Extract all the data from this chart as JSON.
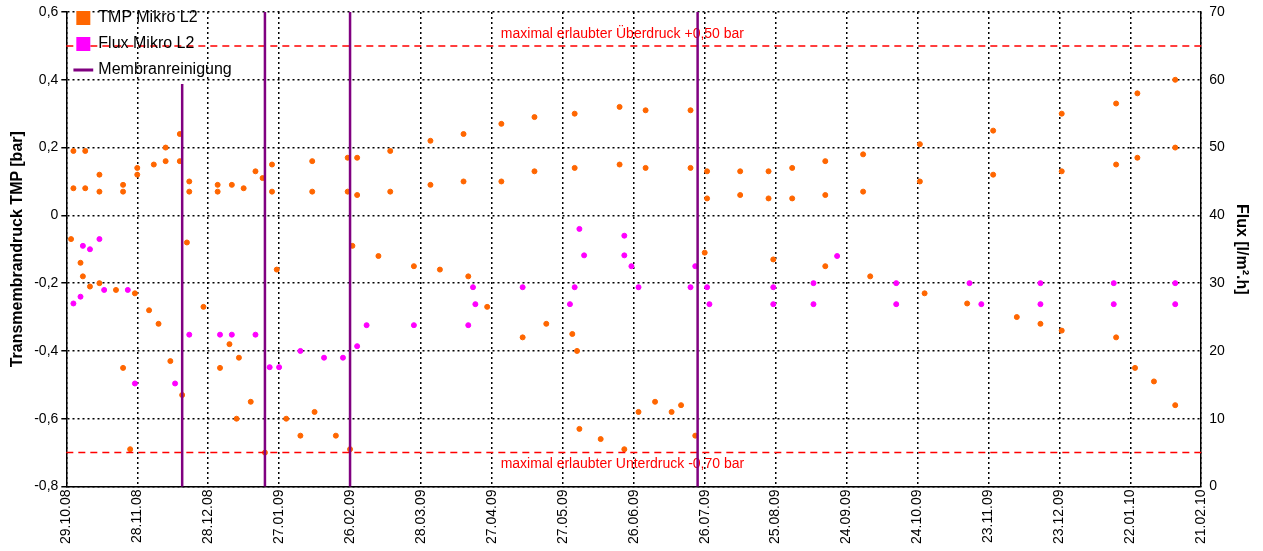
{
  "chart_data": {
    "type": "scatter",
    "ylabel": "Transmembrandruck TMP [bar]",
    "y2label": "Flux [l/m².h]",
    "xlim": [
      "2008-10-29",
      "2010-02-21"
    ],
    "xticks": [
      {
        "value": "2008-10-29",
        "label": "29.10.08"
      },
      {
        "value": "2008-11-28",
        "label": "28.11.08"
      },
      {
        "value": "2008-12-28",
        "label": "28.12.08"
      },
      {
        "value": "2009-01-27",
        "label": "27.01.09"
      },
      {
        "value": "2009-02-26",
        "label": "26.02.09"
      },
      {
        "value": "2009-03-28",
        "label": "28.03.09"
      },
      {
        "value": "2009-04-27",
        "label": "27.04.09"
      },
      {
        "value": "2009-05-27",
        "label": "27.05.09"
      },
      {
        "value": "2009-06-26",
        "label": "26.06.09"
      },
      {
        "value": "2009-07-26",
        "label": "26.07.09"
      },
      {
        "value": "2009-08-25",
        "label": "25.08.09"
      },
      {
        "value": "2009-09-24",
        "label": "24.09.09"
      },
      {
        "value": "2009-10-24",
        "label": "24.10.09"
      },
      {
        "value": "2009-11-23",
        "label": "23.11.09"
      },
      {
        "value": "2009-12-23",
        "label": "23.12.09"
      },
      {
        "value": "2010-01-22",
        "label": "22.01.10"
      },
      {
        "value": "2010-02-21",
        "label": "21.02.10"
      }
    ],
    "ylim": [
      -0.8,
      0.6
    ],
    "yticks": [
      {
        "value": -0.8,
        "label": "-0,8"
      },
      {
        "value": -0.6,
        "label": "-0,6"
      },
      {
        "value": -0.4,
        "label": "-0,4"
      },
      {
        "value": -0.2,
        "label": "-0,2"
      },
      {
        "value": 0,
        "label": "0"
      },
      {
        "value": 0.2,
        "label": "0,2"
      },
      {
        "value": 0.4,
        "label": "0,4"
      },
      {
        "value": 0.6,
        "label": "0,6"
      }
    ],
    "y2lim": [
      0,
      70
    ],
    "y2ticks": [
      0,
      10,
      20,
      30,
      40,
      50,
      60,
      70
    ],
    "grid": true,
    "legend": "top left",
    "marker": "circle",
    "series": [
      {
        "name": "TMP Mikro L2",
        "color": "#ff6600",
        "x": [
          "2008-11-01",
          "2008-11-01",
          "2008-11-06",
          "2008-11-06",
          "2008-11-12",
          "2008-11-12",
          "2008-11-22",
          "2008-11-22",
          "2008-11-28",
          "2008-11-28",
          "2008-12-05",
          "2008-12-10",
          "2008-12-10",
          "2008-12-16",
          "2008-12-16",
          "2008-12-20",
          "2008-12-20",
          "2009-01-01",
          "2009-01-01",
          "2009-01-07",
          "2009-01-12",
          "2009-01-17",
          "2009-01-20",
          "2009-01-24",
          "2009-01-24",
          "2009-02-10",
          "2009-02-10",
          "2009-02-25",
          "2009-02-25",
          "2009-03-01",
          "2009-03-01",
          "2009-03-15",
          "2009-03-15",
          "2009-04-01",
          "2009-04-01",
          "2009-04-15",
          "2009-04-15",
          "2009-05-01",
          "2009-05-01",
          "2009-05-15",
          "2009-05-15",
          "2009-06-01",
          "2009-06-01",
          "2009-06-20",
          "2009-06-20",
          "2009-07-01",
          "2009-07-01",
          "2009-07-20",
          "2009-07-20",
          "2009-07-27",
          "2009-07-27",
          "2009-08-10",
          "2009-08-10",
          "2009-08-22",
          "2009-08-22",
          "2009-09-01",
          "2009-09-01",
          "2009-09-15",
          "2009-09-15",
          "2009-10-01",
          "2009-10-01",
          "2009-10-25",
          "2009-10-25",
          "2009-11-25",
          "2009-11-25",
          "2009-12-24",
          "2009-12-24",
          "2010-01-16",
          "2010-01-16",
          "2010-01-25",
          "2010-01-25",
          "2010-02-10",
          "2010-02-10",
          "2008-10-31",
          "2008-11-04",
          "2008-11-05",
          "2008-11-08",
          "2008-11-12",
          "2008-11-19",
          "2008-11-22",
          "2008-11-25",
          "2008-11-27",
          "2008-12-03",
          "2008-12-07",
          "2008-12-12",
          "2008-12-17",
          "2008-12-19",
          "2008-12-26",
          "2009-01-02",
          "2009-01-06",
          "2009-01-09",
          "2009-01-10",
          "2009-01-15",
          "2009-01-21",
          "2009-01-26",
          "2009-01-30",
          "2009-02-05",
          "2009-02-11",
          "2009-02-20",
          "2009-02-26",
          "2009-02-27",
          "2009-03-10",
          "2009-03-25",
          "2009-04-05",
          "2009-04-17",
          "2009-04-25",
          "2009-05-10",
          "2009-05-20",
          "2009-05-31",
          "2009-06-02",
          "2009-06-03",
          "2009-06-12",
          "2009-06-22",
          "2009-06-28",
          "2009-07-05",
          "2009-07-12",
          "2009-07-16",
          "2009-07-22",
          "2009-07-26",
          "2009-08-24",
          "2009-09-15",
          "2009-10-04",
          "2009-10-27",
          "2009-11-14",
          "2009-12-05",
          "2009-12-15",
          "2009-12-24",
          "2010-01-16",
          "2010-01-24",
          "2010-02-01",
          "2010-02-10"
        ],
        "values": [
          0.19,
          0.08,
          0.19,
          0.08,
          0.12,
          0.07,
          0.09,
          0.07,
          0.14,
          0.12,
          0.15,
          0.2,
          0.16,
          0.24,
          0.16,
          0.1,
          0.07,
          0.09,
          0.07,
          0.09,
          0.08,
          0.13,
          0.11,
          0.15,
          0.07,
          0.16,
          0.07,
          0.17,
          0.07,
          0.17,
          0.06,
          0.19,
          0.07,
          0.22,
          0.09,
          0.24,
          0.1,
          0.27,
          0.1,
          0.29,
          0.13,
          0.3,
          0.14,
          0.32,
          0.15,
          0.31,
          0.14,
          0.31,
          0.14,
          0.13,
          0.05,
          0.13,
          0.06,
          0.13,
          0.05,
          0.14,
          0.05,
          0.16,
          0.06,
          0.18,
          0.07,
          0.21,
          0.1,
          0.25,
          0.12,
          0.3,
          0.13,
          0.33,
          0.15,
          0.36,
          0.17,
          0.4,
          0.2,
          -0.07,
          -0.14,
          -0.18,
          -0.21,
          -0.2,
          -0.22,
          -0.45,
          -0.69,
          -0.23,
          -0.28,
          -0.32,
          -0.43,
          -0.53,
          -0.08,
          -0.27,
          -0.45,
          -0.38,
          -0.6,
          -0.42,
          -0.55,
          -0.7,
          -0.16,
          -0.6,
          -0.65,
          -0.58,
          -0.65,
          -0.69,
          -0.09,
          -0.12,
          -0.15,
          -0.16,
          -0.18,
          -0.27,
          -0.36,
          -0.32,
          -0.35,
          -0.4,
          -0.63,
          -0.66,
          -0.69,
          -0.58,
          -0.55,
          -0.58,
          -0.56,
          -0.65,
          -0.11,
          -0.13,
          -0.15,
          -0.18,
          -0.23,
          -0.26,
          -0.3,
          -0.32,
          -0.34,
          -0.36,
          -0.45,
          -0.49,
          -0.56
        ]
      },
      {
        "name": "Flux Mikro L2",
        "color": "#ff00ff",
        "axis": "y2",
        "x": [
          "2008-11-01",
          "2008-11-04",
          "2008-11-05",
          "2008-11-08",
          "2008-11-12",
          "2008-11-14",
          "2008-11-24",
          "2008-11-27",
          "2008-12-14",
          "2008-12-20",
          "2009-01-02",
          "2009-01-07",
          "2009-01-17",
          "2009-01-23",
          "2009-01-27",
          "2009-02-05",
          "2009-02-15",
          "2009-02-23",
          "2009-03-01",
          "2009-03-05",
          "2009-03-25",
          "2009-04-17",
          "2009-04-19",
          "2009-05-10",
          "2009-06-01",
          "2009-04-20",
          "2009-05-30",
          "2009-06-03",
          "2009-06-22",
          "2009-06-05",
          "2009-06-22",
          "2009-06-25",
          "2009-07-22",
          "2009-06-28",
          "2009-07-20",
          "2009-07-27",
          "2009-08-24",
          "2009-07-28",
          "2009-08-24",
          "2009-09-20",
          "2009-09-10",
          "2009-10-15",
          "2009-11-15",
          "2009-12-15",
          "2010-01-15",
          "2010-02-10",
          "2009-09-10",
          "2009-10-15",
          "2009-11-20",
          "2009-12-15",
          "2010-01-15",
          "2010-02-10"
        ],
        "values": [
          27,
          28,
          35.5,
          35,
          36.5,
          29,
          29,
          15.2,
          15.2,
          22.4,
          22.4,
          22.4,
          22.4,
          17.6,
          17.6,
          20,
          19,
          19,
          20.7,
          23.8,
          23.8,
          23.8,
          29.4,
          29.4,
          29.4,
          26.9,
          26.9,
          38,
          37,
          34.1,
          34.1,
          32.5,
          32.5,
          29.4,
          29.4,
          29.4,
          29.4,
          26.9,
          26.9,
          34,
          30,
          30,
          30,
          30,
          30,
          30,
          26.9,
          26.9,
          26.9,
          26.9,
          26.9,
          26.9
        ]
      }
    ],
    "ref_lines": [
      {
        "axis": "y",
        "value": 0.5,
        "label": "maximal erlaubter Überdruck +0,50 bar",
        "color": "#ff0000",
        "line_style": "dashed"
      },
      {
        "axis": "y",
        "value": -0.7,
        "label": "maximal erlaubter Unterdruck -0,70 bar",
        "color": "#ff0000",
        "line_style": "dashed"
      },
      {
        "axis": "x",
        "value": "2008-12-17",
        "label": "Membranreinigung",
        "color": "#800080",
        "line_style": "solid"
      },
      {
        "axis": "x",
        "value": "2009-01-21",
        "color": "#800080",
        "line_style": "solid"
      },
      {
        "axis": "x",
        "value": "2009-02-26",
        "color": "#800080",
        "line_style": "solid"
      },
      {
        "axis": "x",
        "value": "2009-07-23",
        "color": "#800080",
        "line_style": "solid"
      }
    ]
  }
}
